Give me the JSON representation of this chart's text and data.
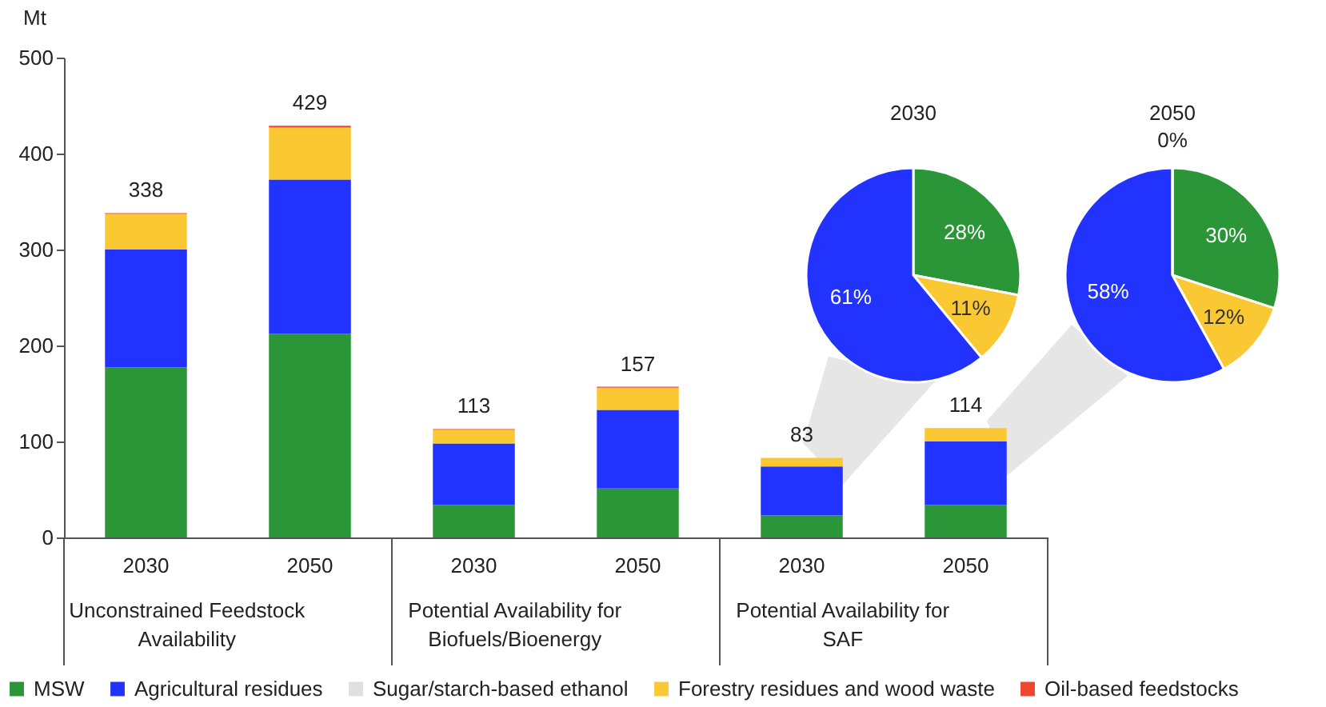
{
  "chart_data": [
    {
      "type": "bar",
      "stacked": true,
      "ylabel": "Mt",
      "categories": [
        "2030",
        "2050",
        "2030",
        "2050",
        "2030",
        "2050"
      ],
      "series": [
        {
          "name": "MSW",
          "color": "#2a9637",
          "values": [
            177,
            212,
            34,
            51,
            23,
            34
          ]
        },
        {
          "name": "Agricultural residues",
          "color": "#2233ff",
          "values": [
            123,
            161,
            64,
            82,
            51,
            66
          ]
        },
        {
          "name": "Sugar/starch-based ethanol",
          "color": "#e0e0e0",
          "values": [
            0,
            0,
            0,
            0,
            0,
            0
          ]
        },
        {
          "name": "Forestry residues and wood waste",
          "color": "#f9c833",
          "values": [
            37,
            54,
            14,
            23,
            9,
            14
          ]
        },
        {
          "name": "Oil-based feedstocks",
          "color": "#f0452e",
          "values": [
            1,
            2,
            1,
            1,
            0,
            0
          ]
        }
      ],
      "ylim": [
        0,
        500
      ],
      "yticks": [
        0,
        100,
        200,
        300,
        400,
        500
      ],
      "totals": [
        "338",
        "429",
        "113",
        "157",
        "83",
        "114"
      ],
      "annotations": [
        "Unconstrained Feedstock Availability",
        "Potential Availability for Biofuels/Bioenergy",
        "Potential Availability for SAF"
      ],
      "legend": "bottom"
    },
    {
      "type": "pie",
      "title": "2030",
      "categories": [
        null,
        null,
        null
      ],
      "values": [
        28,
        11,
        61
      ],
      "colors": [
        "#2a9637",
        "#f9c833",
        "#2233ff"
      ],
      "value_labels": [
        "28%",
        "11%",
        "61%"
      ]
    },
    {
      "type": "pie",
      "title": "2050",
      "categories": [
        null,
        null,
        null,
        null
      ],
      "values": [
        30,
        12,
        58,
        0
      ],
      "colors": [
        "#2a9637",
        "#f9c833",
        "#2233ff",
        "#f0452e"
      ],
      "value_labels": [
        "30%",
        "12%",
        "58%",
        "0%"
      ]
    }
  ]
}
